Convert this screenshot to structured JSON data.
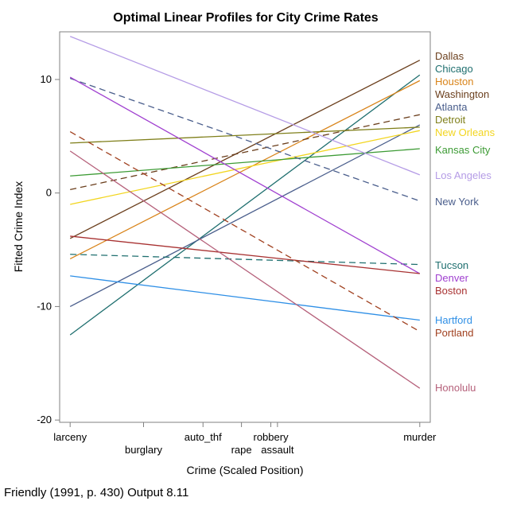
{
  "chart_data": {
    "type": "line",
    "title": "Optimal Linear Profiles for City Crime Rates",
    "xlabel": "Crime (Scaled Position)",
    "ylabel": "Fitted Crime Index",
    "footnote": "Friendly (1991, p. 430) Output 8.11",
    "x_ticks": [
      {
        "label": "larceny",
        "value": 0.0
      },
      {
        "label": "burglary",
        "value": 0.21
      },
      {
        "label": "auto_thf",
        "value": 0.38
      },
      {
        "label": "rape",
        "value": 0.49
      },
      {
        "label": "robbery",
        "value": 0.574
      },
      {
        "label": "assault",
        "value": 0.593
      },
      {
        "label": "murder",
        "value": 1.0
      }
    ],
    "xlim": [
      -0.03,
      1.03
    ],
    "ylim": [
      -20.2,
      14.2
    ],
    "y_ticks": [
      10,
      0,
      -10,
      -20
    ],
    "grid": false,
    "legend": "right",
    "series": [
      {
        "name": "Dallas",
        "start": -4.0,
        "end": 11.7,
        "color": "#6b3f1d",
        "dash": false
      },
      {
        "name": "Chicago",
        "start": -12.5,
        "end": 10.4,
        "color": "#1f6f6f",
        "dash": false
      },
      {
        "name": "Houston",
        "start": -5.8,
        "end": 9.9,
        "color": "#d9841a",
        "dash": false
      },
      {
        "name": "Washington",
        "start": 0.3,
        "end": 6.9,
        "color": "#6b3f1d",
        "dash": true
      },
      {
        "name": "Atlanta",
        "start": -10.0,
        "end": 6.0,
        "color": "#4a5e8c",
        "dash": false
      },
      {
        "name": "Detroit",
        "start": 4.4,
        "end": 5.8,
        "color": "#7f7f1a",
        "dash": false
      },
      {
        "name": "New Orleans",
        "start": -1.0,
        "end": 5.5,
        "color": "#f2d51f",
        "dash": false
      },
      {
        "name": "Kansas City",
        "start": 1.5,
        "end": 3.9,
        "color": "#3d9b35",
        "dash": false
      },
      {
        "name": "Los Angeles",
        "start": 13.8,
        "end": 1.6,
        "color": "#b59ce6",
        "dash": false
      },
      {
        "name": "New York",
        "start": 10.1,
        "end": -0.7,
        "color": "#4a5e8c",
        "dash": true
      },
      {
        "name": "Tucson",
        "start": -5.4,
        "end": -6.3,
        "color": "#1f6f6f",
        "dash": true
      },
      {
        "name": "Denver",
        "start": 10.2,
        "end": -7.1,
        "color": "#a040d0",
        "dash": false
      },
      {
        "name": "Boston",
        "start": -3.8,
        "end": -7.1,
        "color": "#a83232",
        "dash": false
      },
      {
        "name": "Hartford",
        "start": -7.3,
        "end": -11.2,
        "color": "#2e8fe6",
        "dash": false
      },
      {
        "name": "Portland",
        "start": 5.4,
        "end": -12.2,
        "color": "#a0401f",
        "dash": true
      },
      {
        "name": "Honolulu",
        "start": 3.7,
        "end": -17.2,
        "color": "#b5607a",
        "dash": false
      }
    ],
    "label_rows": {
      "Dallas": 71,
      "Chicago": 87,
      "Houston": 103,
      "Washington": 119,
      "Atlanta": 135,
      "Detroit": 151,
      "New Orleans": 167,
      "Kansas City": 189,
      "Los Angeles": 221,
      "New York": 254,
      "Tucson": 334,
      "Denver": 350,
      "Boston": 366,
      "Hartford": 403,
      "Portland": 419,
      "Honolulu": 488
    }
  }
}
